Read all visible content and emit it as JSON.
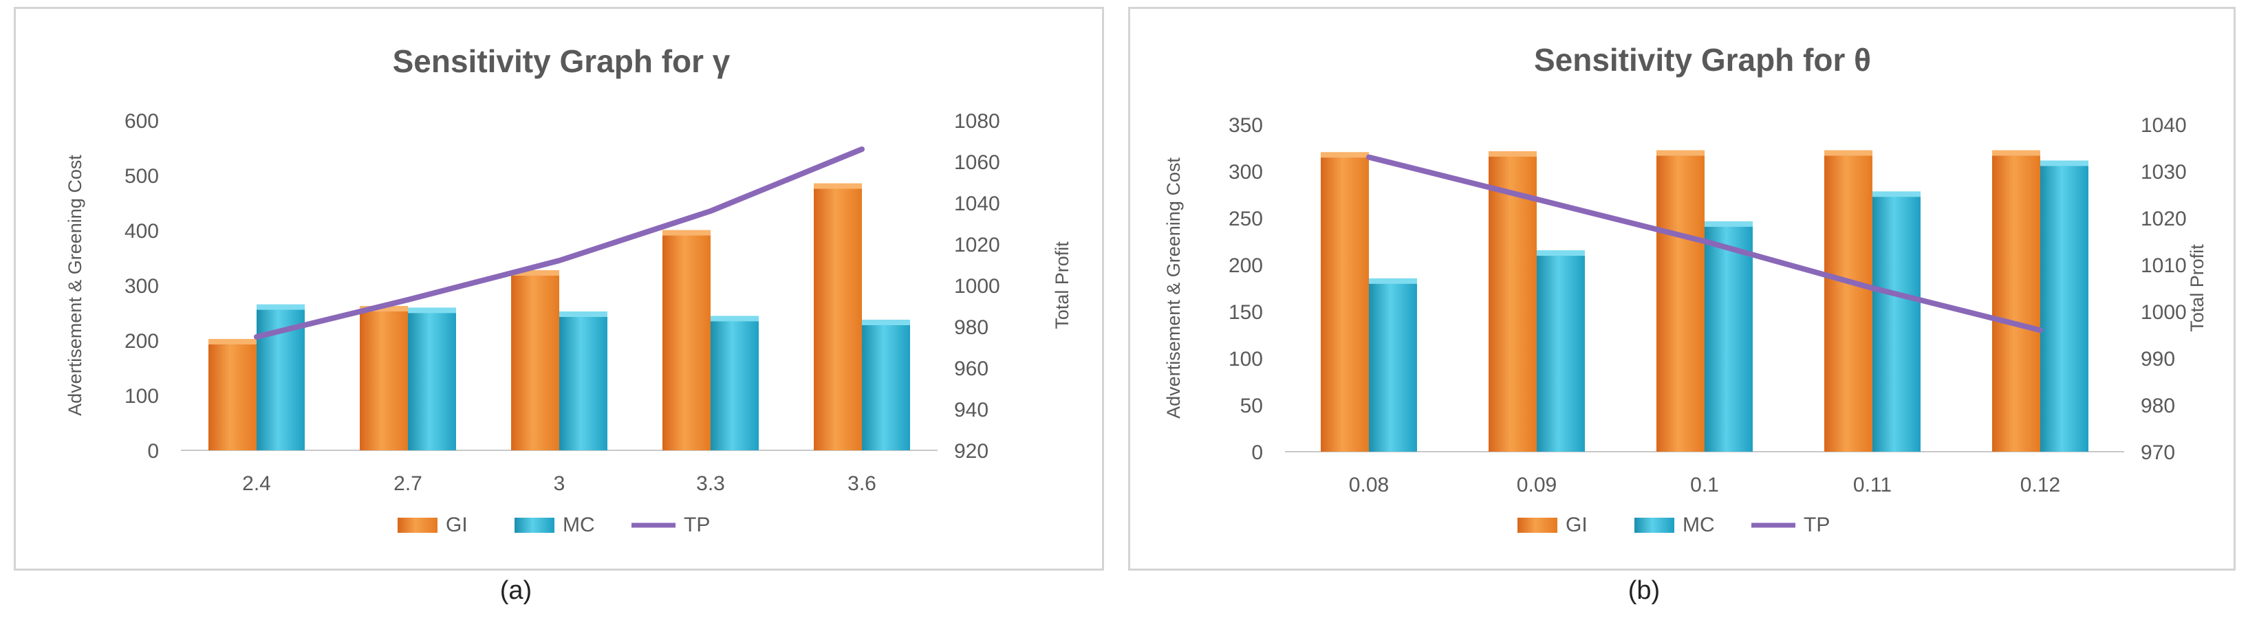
{
  "captions": [
    "(a)",
    "(b)"
  ],
  "legend_labels": [
    "GI",
    "MC",
    "TP"
  ],
  "colors": {
    "GI": "#f0872a",
    "MC": "#27b5d6",
    "TP": "#8a68b8"
  },
  "chart_data": [
    {
      "type": "bar",
      "title": "Sensitivity Graph for γ",
      "categories": [
        "2.4",
        "2.7",
        "3",
        "3.3",
        "3.6"
      ],
      "ylabel": "Advertisement & Greening Cost",
      "y2label": "Total Profit",
      "ylim": [
        0,
        600
      ],
      "yticks": [
        "0",
        "100",
        "200",
        "300",
        "400",
        "500",
        "600"
      ],
      "y2lim": [
        920,
        1080
      ],
      "y2ticks": [
        "920",
        "940",
        "960",
        "980",
        "1000",
        "1020",
        "1040",
        "1060",
        "1080"
      ],
      "series": [
        {
          "name": "GI",
          "type": "bar",
          "values": [
            195,
            255,
            320,
            393,
            478
          ]
        },
        {
          "name": "MC",
          "type": "bar",
          "values": [
            258,
            252,
            245,
            237,
            230
          ]
        },
        {
          "name": "TP",
          "type": "line",
          "axis": "secondary",
          "values": [
            975,
            993,
            1012,
            1036,
            1066
          ]
        }
      ],
      "legend": "bottom",
      "grid": false
    },
    {
      "type": "bar",
      "title": "Sensitivity Graph for θ",
      "categories": [
        "0.08",
        "0.09",
        "0.1",
        "0.11",
        "0.12"
      ],
      "ylabel": "Advertisement & Greening Cost",
      "y2label": "Total Profit",
      "ylim": [
        0,
        350
      ],
      "yticks": [
        "0",
        "50",
        "100",
        "150",
        "200",
        "250",
        "300",
        "350"
      ],
      "y2lim": [
        970,
        1040
      ],
      "y2ticks": [
        "970",
        "980",
        "990",
        "1000",
        "1010",
        "1020",
        "1030",
        "1040"
      ],
      "series": [
        {
          "name": "GI",
          "type": "bar",
          "values": [
            316,
            317,
            318,
            318,
            318
          ]
        },
        {
          "name": "MC",
          "type": "bar",
          "values": [
            181,
            211,
            242,
            274,
            307
          ]
        },
        {
          "name": "TP",
          "type": "line",
          "axis": "secondary",
          "values": [
            1033,
            1024,
            1015,
            1005,
            996
          ]
        }
      ],
      "legend": "bottom",
      "grid": false
    }
  ]
}
